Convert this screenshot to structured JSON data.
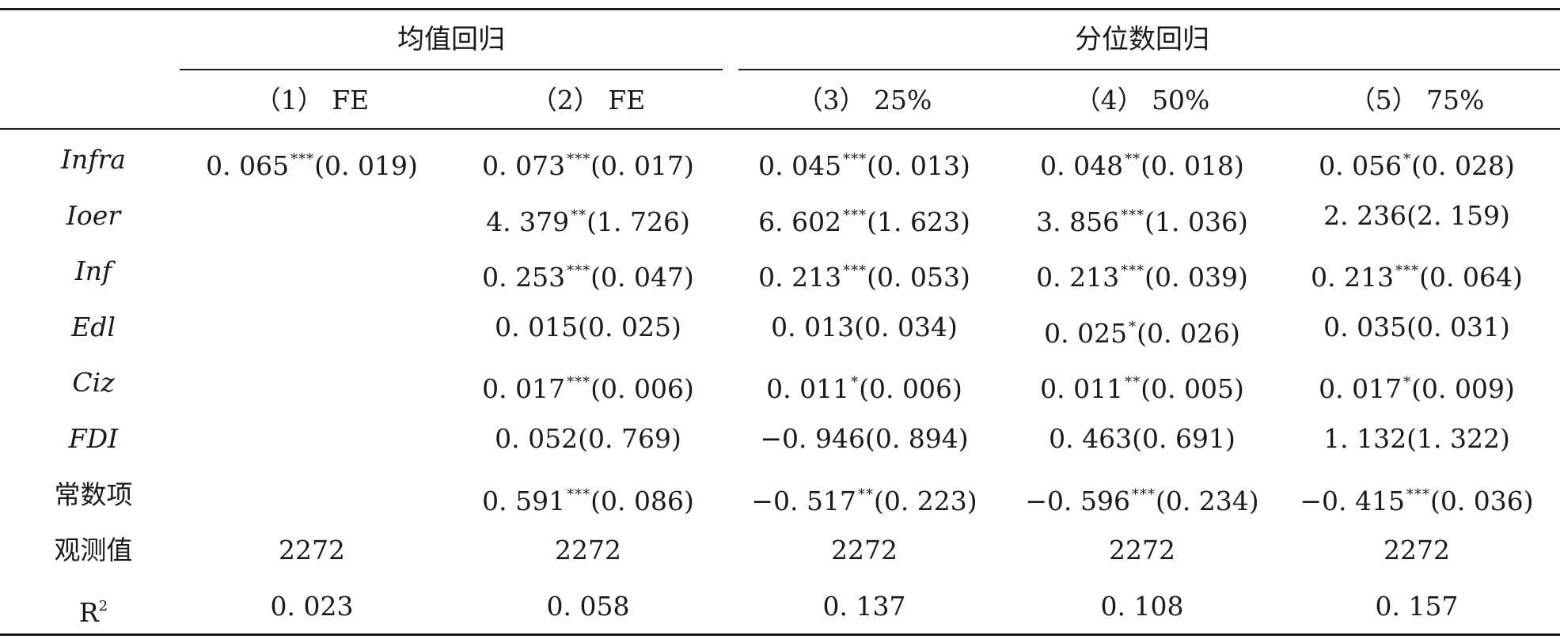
{
  "table": {
    "group_headers": [
      "均值回归",
      "分位数回归"
    ],
    "column_headers": [
      "（1） FE",
      "（2） FE",
      "（3） 25%",
      "（4） 50%",
      "（5） 75%"
    ],
    "rows": [
      {
        "label": "Infra",
        "italic": true,
        "cells": [
          {
            "value": "0. 065",
            "stars": "***",
            "se": "(0. 019)"
          },
          {
            "value": "0. 073",
            "stars": "***",
            "se": "(0. 017)"
          },
          {
            "value": "0. 045",
            "stars": "***",
            "se": "(0. 013)"
          },
          {
            "value": "0. 048",
            "stars": "**",
            "se": "(0. 018)"
          },
          {
            "value": "0. 056",
            "stars": "*",
            "se": "(0. 028)"
          }
        ]
      },
      {
        "label": "Ioer",
        "italic": true,
        "cells": [
          null,
          {
            "value": "4. 379",
            "stars": "**",
            "se": "(1. 726)"
          },
          {
            "value": "6. 602",
            "stars": "***",
            "se": "(1. 623)"
          },
          {
            "value": "3. 856",
            "stars": "***",
            "se": "(1. 036)"
          },
          {
            "value": "2. 236",
            "stars": "",
            "se": "(2. 159)"
          }
        ]
      },
      {
        "label": "Inf",
        "italic": true,
        "cells": [
          null,
          {
            "value": "0. 253",
            "stars": "***",
            "se": "(0. 047)"
          },
          {
            "value": "0. 213",
            "stars": "***",
            "se": "(0. 053)"
          },
          {
            "value": "0. 213",
            "stars": "***",
            "se": "(0. 039)"
          },
          {
            "value": "0. 213",
            "stars": "***",
            "se": "(0. 064)"
          }
        ]
      },
      {
        "label": "Edl",
        "italic": true,
        "cells": [
          null,
          {
            "value": "0. 015",
            "stars": "",
            "se": "(0. 025)"
          },
          {
            "value": "0. 013",
            "stars": "",
            "se": "(0. 034)"
          },
          {
            "value": "0. 025",
            "stars": "*",
            "se": "(0. 026)"
          },
          {
            "value": "0. 035",
            "stars": "",
            "se": "(0. 031)"
          }
        ]
      },
      {
        "label": "Ciz",
        "italic": true,
        "cells": [
          null,
          {
            "value": "0. 017",
            "stars": "***",
            "se": "(0. 006)"
          },
          {
            "value": "0. 011",
            "stars": "*",
            "se": "(0. 006)"
          },
          {
            "value": "0. 011",
            "stars": "**",
            "se": "(0. 005)"
          },
          {
            "value": "0. 017",
            "stars": "*",
            "se": "(0. 009)"
          }
        ]
      },
      {
        "label": "FDI",
        "italic": true,
        "cells": [
          null,
          {
            "value": "0. 052",
            "stars": "",
            "se": "(0. 769)"
          },
          {
            "value": "−0. 946",
            "stars": "",
            "se": "(0. 894)"
          },
          {
            "value": "0. 463",
            "stars": "",
            "se": "(0. 691)"
          },
          {
            "value": "1. 132",
            "stars": "",
            "se": "(1. 322)"
          }
        ]
      },
      {
        "label": "常数项",
        "italic": false,
        "cells": [
          null,
          {
            "value": "0. 591",
            "stars": "***",
            "se": "(0. 086)"
          },
          {
            "value": "−0. 517",
            "stars": "**",
            "se": "(0. 223)"
          },
          {
            "value": "−0. 596",
            "stars": "***",
            "se": "(0. 234)"
          },
          {
            "value": "−0. 415",
            "stars": "***",
            "se": "(0. 036)"
          }
        ]
      },
      {
        "label": "观测值",
        "italic": false,
        "cells": [
          {
            "value": "2272",
            "stars": "",
            "se": ""
          },
          {
            "value": "2272",
            "stars": "",
            "se": ""
          },
          {
            "value": "2272",
            "stars": "",
            "se": ""
          },
          {
            "value": "2272",
            "stars": "",
            "se": ""
          },
          {
            "value": "2272",
            "stars": "",
            "se": ""
          }
        ]
      },
      {
        "label": "R",
        "label_sup": "2",
        "italic": false,
        "cells": [
          {
            "value": "0. 023",
            "stars": "",
            "se": ""
          },
          {
            "value": "0. 058",
            "stars": "",
            "se": ""
          },
          {
            "value": "0. 137",
            "stars": "",
            "se": ""
          },
          {
            "value": "0. 108",
            "stars": "",
            "se": ""
          },
          {
            "value": "0. 157",
            "stars": "",
            "se": ""
          }
        ]
      }
    ]
  }
}
